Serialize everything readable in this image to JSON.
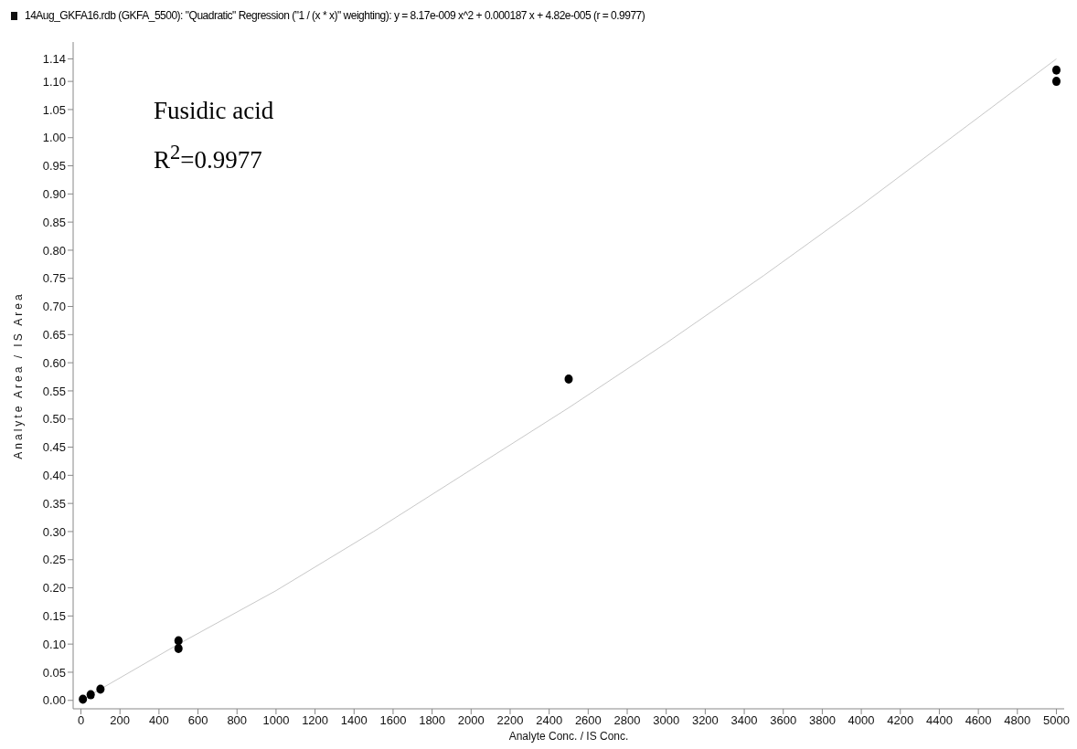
{
  "chart_data": {
    "type": "scatter",
    "title": "14Aug_GKFA16.rdb (GKFA_5500): \"Quadratic\" Regression (\"1  / (x * x)\" weighting): y = 8.17e-009 x^2 + 0.000187 x + 4.82e-005 (r = 0.9977)",
    "xlabel": "Analyte Conc. / IS Conc.",
    "ylabel": "Analyte Area / IS Area",
    "annotations": [
      "Fusidic acid",
      "R$^{2}$=0.9977"
    ],
    "series": [
      {
        "color": "#000000",
        "marker": "circle",
        "x": [
          10,
          50,
          100,
          500,
          500,
          2500,
          5000,
          5000
        ],
        "values": [
          0.002,
          0.01,
          0.02,
          0.106,
          0.092,
          0.571,
          1.12,
          1.1
        ]
      },
      {
        "type": "line",
        "color": "#c8c8c8",
        "line_style": "solid",
        "x": [
          0,
          500,
          1000,
          1500,
          2000,
          2500,
          3000,
          3500,
          4000,
          4500,
          5000
        ],
        "values": [
          0.0,
          0.1,
          0.195,
          0.3,
          0.41,
          0.52,
          0.635,
          0.755,
          0.88,
          1.01,
          1.14
        ]
      }
    ],
    "xlim": [
      -40,
      5040
    ],
    "ylim": [
      -0.015,
      1.17
    ],
    "xticks": [
      0,
      200,
      400,
      600,
      800,
      1000,
      1200,
      1400,
      1600,
      1800,
      2000,
      2200,
      2400,
      2600,
      2800,
      3000,
      3200,
      3400,
      3600,
      3800,
      4000,
      4200,
      4400,
      4600,
      4800,
      5000
    ],
    "yticks": [
      {
        "value": 0,
        "label": "0.00"
      },
      {
        "value": 0.05,
        "label": "0.05"
      },
      {
        "value": 0.1,
        "label": "0.10"
      },
      {
        "value": 0.15,
        "label": "0.15"
      },
      {
        "value": 0.2,
        "label": "0.20"
      },
      {
        "value": 0.25,
        "label": "0.25"
      },
      {
        "value": 0.3,
        "label": "0.30"
      },
      {
        "value": 0.35,
        "label": "0.35"
      },
      {
        "value": 0.4,
        "label": "0.40"
      },
      {
        "value": 0.45,
        "label": "0.45"
      },
      {
        "value": 0.5,
        "label": "0.50"
      },
      {
        "value": 0.55,
        "label": "0.55"
      },
      {
        "value": 0.6,
        "label": "0.60"
      },
      {
        "value": 0.65,
        "label": "0.65"
      },
      {
        "value": 0.7,
        "label": "0.70"
      },
      {
        "value": 0.75,
        "label": "0.75"
      },
      {
        "value": 0.8,
        "label": "0.80"
      },
      {
        "value": 0.85,
        "label": "0.85"
      },
      {
        "value": 0.9,
        "label": "0.90"
      },
      {
        "value": 0.95,
        "label": "0.95"
      },
      {
        "value": 1.0,
        "label": "1.00"
      },
      {
        "value": 1.05,
        "label": "1.05"
      },
      {
        "value": 1.1,
        "label": "1.10"
      },
      {
        "value": 1.14,
        "label": "1.14"
      }
    ]
  }
}
